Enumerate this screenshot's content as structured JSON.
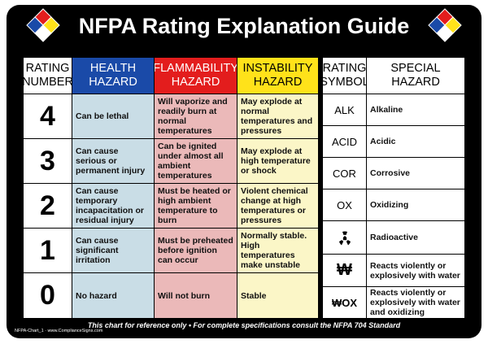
{
  "title": "NFPA Rating Explanation Guide",
  "headers": {
    "rating_number": "RATING NUMBER",
    "health": "HEALTH HAZARD",
    "flammability": "FLAMMABILITY HAZARD",
    "instability": "INSTABILITY HAZARD",
    "rating_symbol": "RATING SYMBOL",
    "special": "SPECIAL HAZARD"
  },
  "ratings": [
    {
      "number": "4",
      "health": "Can be lethal",
      "flammability": "Will vaporize and readily burn at normal temperatures",
      "instability": "May explode at normal temperatures and pressures"
    },
    {
      "number": "3",
      "health": "Can cause serious or permanent injury",
      "flammability": "Can be ignited under almost all ambient temperatures",
      "instability": "May explode at high temperature or shock"
    },
    {
      "number": "2",
      "health": "Can cause temporary incapacitation or residual injury",
      "flammability": "Must be heated or high ambient temperature to burn",
      "instability": "Violent chemical change at high temperatures or pressures"
    },
    {
      "number": "1",
      "health": "Can cause significant irritation",
      "flammability": "Must be preheated before ignition can occur",
      "instability": "Normally stable. High temperatures make unstable"
    },
    {
      "number": "0",
      "health": "No hazard",
      "flammability": "Will not burn",
      "instability": "Stable"
    }
  ],
  "special": [
    {
      "symbol": "ALK",
      "description": "Alkaline"
    },
    {
      "symbol": "ACID",
      "description": "Acidic"
    },
    {
      "symbol": "COR",
      "description": "Corrosive"
    },
    {
      "symbol": "OX",
      "description": "Oxidizing"
    },
    {
      "symbol": "",
      "icon": "radiation-icon",
      "description": "Radioactive"
    },
    {
      "symbol": "₩",
      "description": "Reacts violently or explosively with water"
    },
    {
      "symbol": "₩OX",
      "description": "Reacts violently or explosively with water and oxidizing"
    }
  ],
  "footer": "This chart for reference only • For complete specifications consult the NFPA 704 Standard",
  "small_print": "NFPA-Chart_1 · www.ComplianceSigns.com",
  "colors": {
    "health": "#1a4aa8",
    "flammability": "#e31d1d",
    "instability": "#ffe21a",
    "special": "#ffffff"
  }
}
